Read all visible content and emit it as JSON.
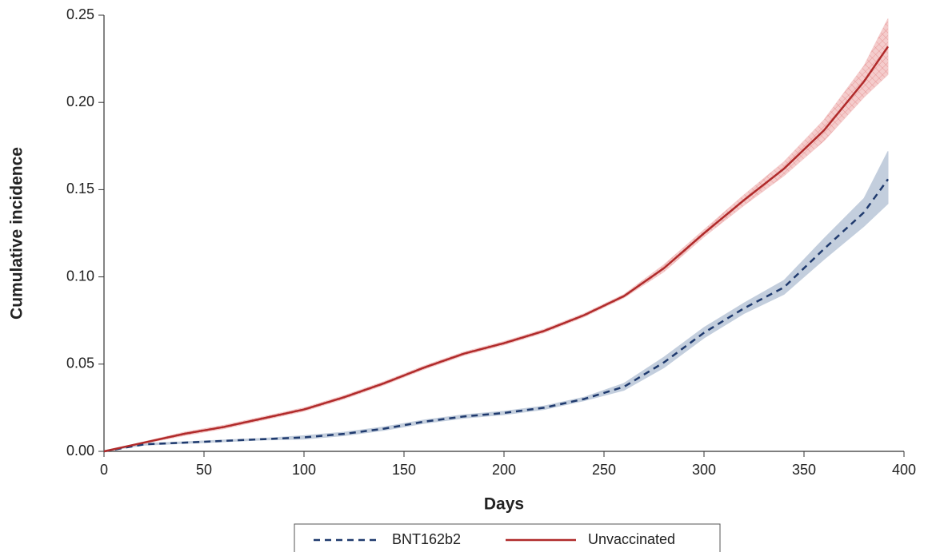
{
  "chart_data": {
    "type": "line",
    "x_label": "Days",
    "y_label": "Cumulative incidence",
    "x": [
      0,
      20,
      40,
      60,
      80,
      100,
      120,
      140,
      160,
      180,
      200,
      220,
      240,
      260,
      280,
      300,
      320,
      340,
      360,
      380,
      392
    ],
    "series": [
      {
        "name": "BNT162b2",
        "color": "#1f3a6e",
        "band_color": "#b9c6d8",
        "dashed": true,
        "values": [
          0,
          0.004,
          0.005,
          0.006,
          0.007,
          0.008,
          0.01,
          0.013,
          0.017,
          0.02,
          0.022,
          0.025,
          0.03,
          0.037,
          0.051,
          0.068,
          0.082,
          0.094,
          0.116,
          0.137,
          0.156
        ],
        "upper": [
          0,
          0.0045,
          0.0055,
          0.0065,
          0.0075,
          0.009,
          0.011,
          0.014,
          0.018,
          0.021,
          0.023,
          0.026,
          0.031,
          0.039,
          0.054,
          0.071,
          0.085,
          0.098,
          0.122,
          0.145,
          0.172
        ],
        "lower": [
          0,
          0.0035,
          0.0045,
          0.0055,
          0.0065,
          0.007,
          0.009,
          0.012,
          0.016,
          0.019,
          0.021,
          0.024,
          0.029,
          0.035,
          0.048,
          0.065,
          0.079,
          0.09,
          0.11,
          0.129,
          0.142
        ]
      },
      {
        "name": "Unvaccinated",
        "color": "#b02a2a",
        "band_color": "#f3c4c4",
        "dashed": false,
        "values": [
          0,
          0.005,
          0.01,
          0.014,
          0.019,
          0.024,
          0.031,
          0.039,
          0.048,
          0.056,
          0.062,
          0.069,
          0.078,
          0.089,
          0.105,
          0.125,
          0.144,
          0.162,
          0.184,
          0.212,
          0.232
        ],
        "upper": [
          0,
          0.0055,
          0.011,
          0.015,
          0.02,
          0.025,
          0.032,
          0.04,
          0.049,
          0.057,
          0.063,
          0.07,
          0.079,
          0.09,
          0.107,
          0.127,
          0.147,
          0.166,
          0.19,
          0.221,
          0.248
        ],
        "lower": [
          0,
          0.0045,
          0.009,
          0.013,
          0.018,
          0.023,
          0.03,
          0.038,
          0.047,
          0.055,
          0.061,
          0.068,
          0.077,
          0.088,
          0.103,
          0.123,
          0.141,
          0.158,
          0.178,
          0.203,
          0.216
        ]
      }
    ],
    "xlim": [
      0,
      400
    ],
    "xticks": [
      0,
      50,
      100,
      150,
      200,
      250,
      300,
      350,
      400
    ],
    "ylim": [
      0,
      0.25
    ],
    "yticks": [
      {
        "value": 0,
        "label": "0.00"
      },
      0.05,
      {
        "value": 0.1,
        "label": "0.10"
      },
      0.15,
      {
        "value": 0.2,
        "label": "0.20"
      },
      0.25
    ],
    "legend": "bottom"
  }
}
